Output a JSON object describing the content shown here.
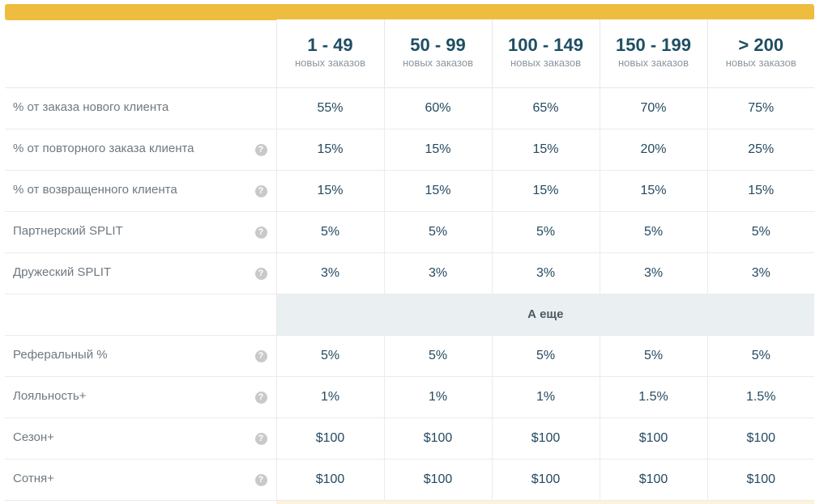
{
  "tiers": [
    {
      "range": "1 - 49",
      "sub": "новых заказов"
    },
    {
      "range": "50 - 99",
      "sub": "новых заказов"
    },
    {
      "range": "100 - 149",
      "sub": "новых заказов"
    },
    {
      "range": "150 - 199",
      "sub": "новых заказов"
    },
    {
      "range": "> 200",
      "sub": "новых заказов"
    }
  ],
  "help_glyph": "?",
  "rows_main": [
    {
      "label": "% от заказа нового клиента",
      "help": false,
      "values": [
        "55%",
        "60%",
        "65%",
        "70%",
        "75%"
      ]
    },
    {
      "label": "% от повторного заказа клиента",
      "help": true,
      "values": [
        "15%",
        "15%",
        "15%",
        "20%",
        "25%"
      ]
    },
    {
      "label": "% от возвращенного клиента",
      "help": true,
      "values": [
        "15%",
        "15%",
        "15%",
        "15%",
        "15%"
      ]
    },
    {
      "label": "Партнерский SPLIT",
      "help": true,
      "values": [
        "5%",
        "5%",
        "5%",
        "5%",
        "5%"
      ]
    },
    {
      "label": "Дружеский SPLIT",
      "help": true,
      "values": [
        "3%",
        "3%",
        "3%",
        "3%",
        "3%"
      ]
    }
  ],
  "section_title": "А еще",
  "rows_extra": [
    {
      "label": "Реферальный %",
      "help": true,
      "values": [
        "5%",
        "5%",
        "5%",
        "5%",
        "5%"
      ]
    },
    {
      "label": "Лояльность+",
      "help": true,
      "values": [
        "1%",
        "1%",
        "1%",
        "1.5%",
        "1.5%"
      ]
    },
    {
      "label": "Сезон+",
      "help": true,
      "values": [
        "$100",
        "$100",
        "$100",
        "$100",
        "$100"
      ]
    },
    {
      "label": "Сотня+",
      "help": true,
      "values": [
        "$100",
        "$100",
        "$100",
        "$100",
        "$100"
      ]
    }
  ],
  "colors": {
    "accent_bar": "#eebc3e",
    "value_text": "#244a60",
    "section_bg": "#eaf0f2"
  }
}
